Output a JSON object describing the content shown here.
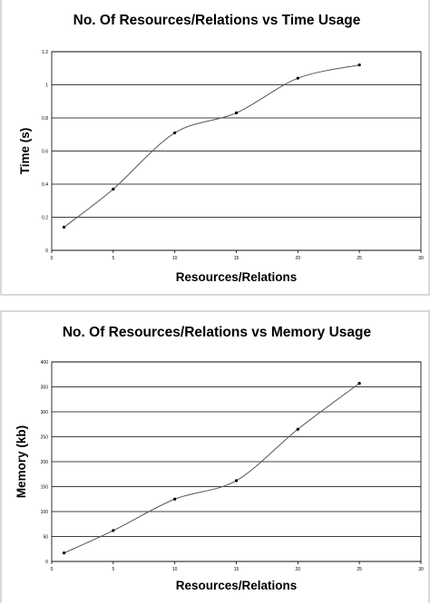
{
  "chart_data": [
    {
      "type": "line",
      "title": "No. Of Resources/Relations vs Time Usage",
      "xlabel": "Resources/Relations",
      "ylabel": "Time (s)",
      "xlim": [
        0,
        30
      ],
      "ylim": [
        0,
        1.2
      ],
      "xticks": [
        0,
        5,
        10,
        15,
        20,
        25,
        30
      ],
      "yticks": [
        0,
        0.2,
        0.4,
        0.6,
        0.8,
        1,
        1.2
      ],
      "grid": "horizontal",
      "legend": "none",
      "series": [
        {
          "x": [
            1,
            5,
            10,
            15,
            20,
            25
          ],
          "values": [
            0.14,
            0.37,
            0.71,
            0.83,
            1.04,
            1.12
          ]
        }
      ]
    },
    {
      "type": "line",
      "title": "No. Of Resources/Relations vs Memory Usage",
      "xlabel": "Resources/Relations",
      "ylabel": "Memory (kb)",
      "xlim": [
        0,
        30
      ],
      "ylim": [
        0,
        400
      ],
      "xticks": [
        0,
        5,
        10,
        15,
        20,
        25,
        30
      ],
      "yticks": [
        0,
        50,
        100,
        150,
        200,
        250,
        300,
        350,
        400
      ],
      "grid": "horizontal",
      "legend": "none",
      "series": [
        {
          "x": [
            1,
            5,
            10,
            15,
            20,
            25
          ],
          "values": [
            17,
            62,
            125,
            162,
            265,
            357
          ]
        }
      ]
    }
  ],
  "colors": {
    "line": "#555555",
    "grid": "#000000",
    "marker": "#000000"
  }
}
